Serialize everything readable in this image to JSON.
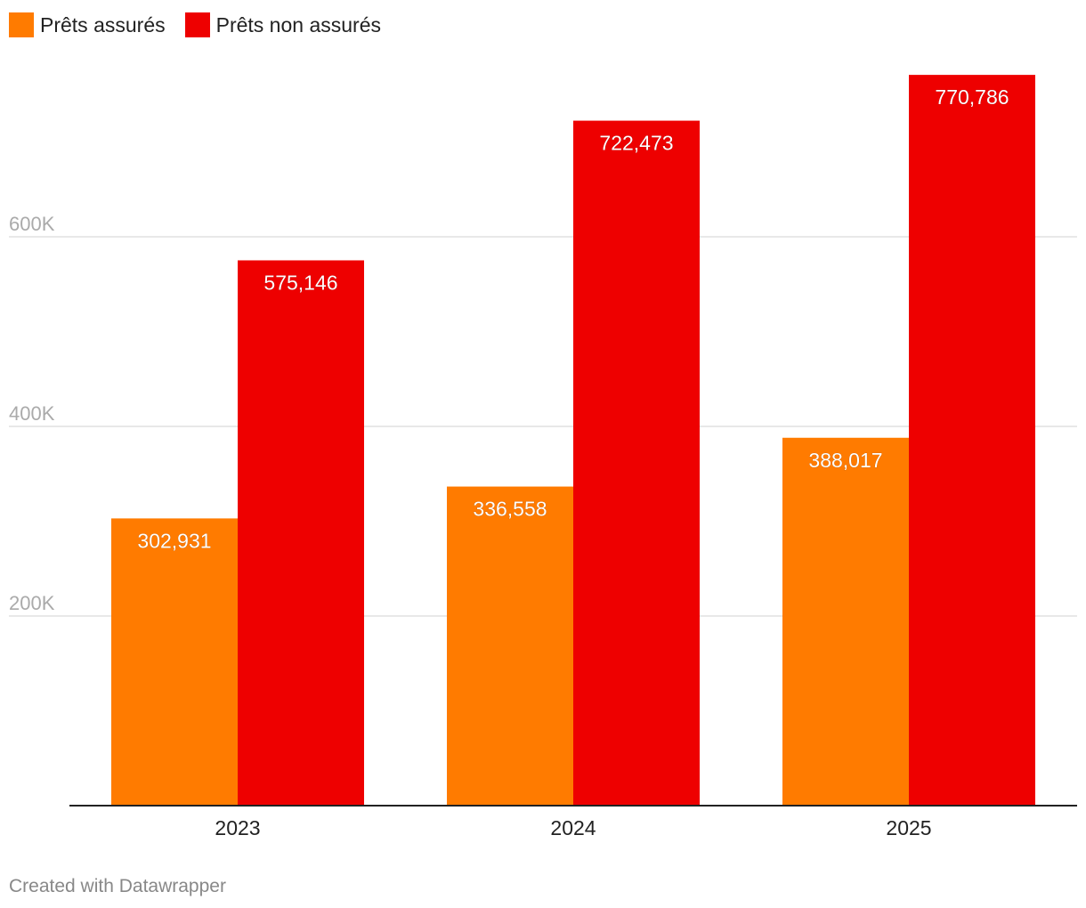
{
  "chart_data": {
    "type": "bar",
    "categories": [
      "2023",
      "2024",
      "2025"
    ],
    "series": [
      {
        "name": "Prêts assurés",
        "values": [
          302931,
          336558,
          388017
        ],
        "color": "#ff7b00"
      },
      {
        "name": "Prêts non assurés",
        "values": [
          575146,
          722473,
          770786
        ],
        "color": "#ee0000"
      }
    ],
    "value_labels": [
      [
        "302,931",
        "336,558",
        "388,017"
      ],
      [
        "575,146",
        "722,473",
        "770,786"
      ]
    ],
    "yticks": [
      200000,
      400000,
      600000
    ],
    "ytick_labels": [
      "200K",
      "400K",
      "600K"
    ],
    "ylim": [
      0,
      800000
    ],
    "title": "",
    "xlabel": "",
    "ylabel": "",
    "grid": true,
    "legend_position": "top-left"
  },
  "footer": {
    "credit": "Created with Datawrapper"
  },
  "colors": {
    "grid": "#e0e0e0",
    "axis": "#222222",
    "tick_text": "#aaaaaa",
    "value_label": "#ffffff"
  }
}
